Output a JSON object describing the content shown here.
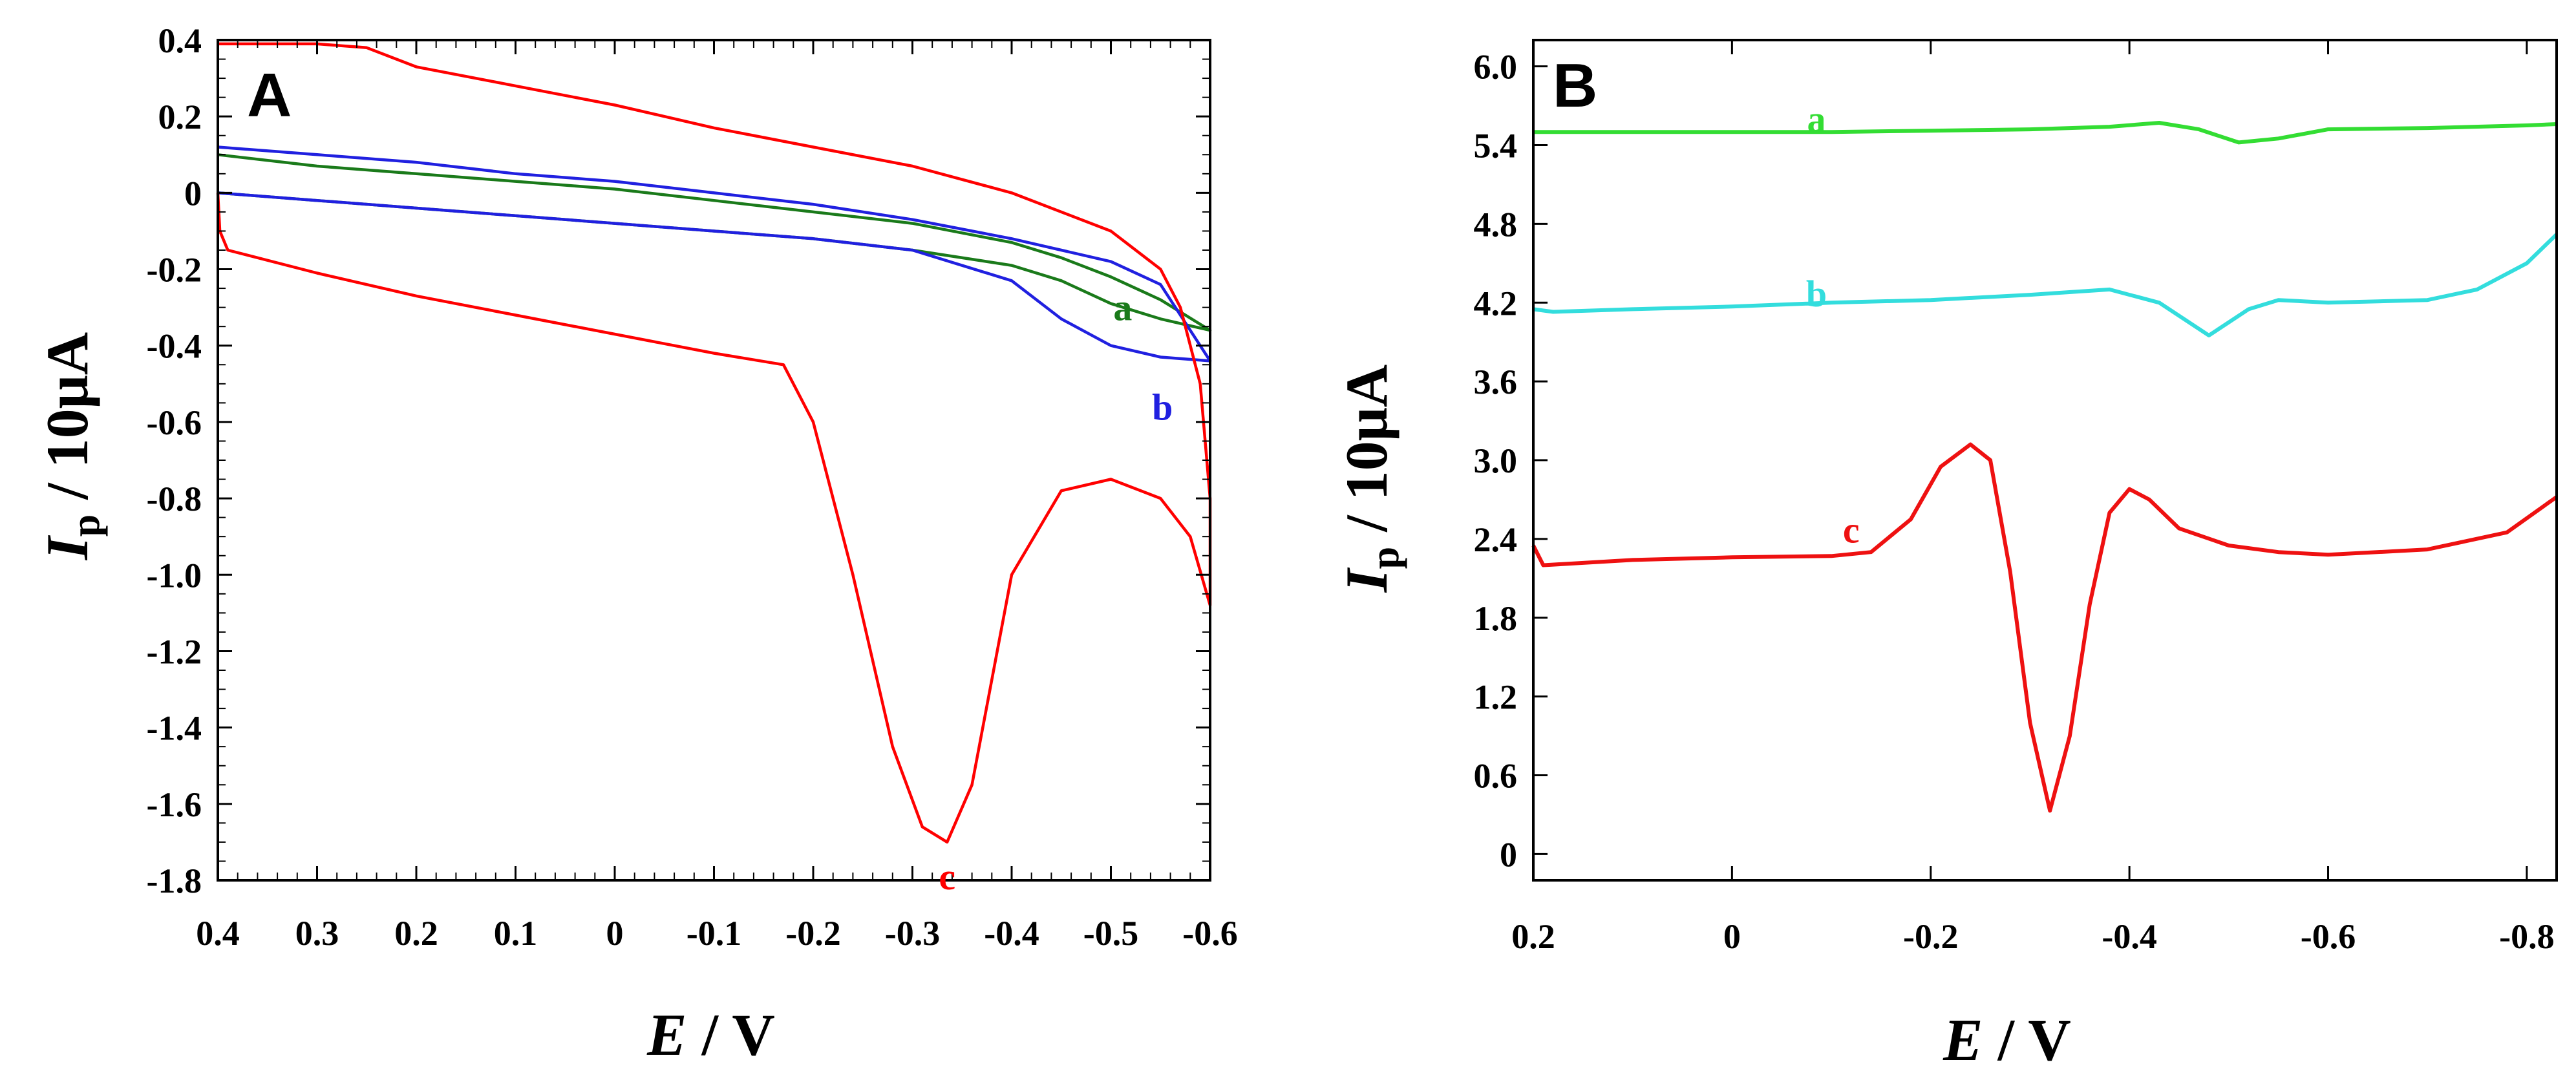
{
  "chart_data": [
    {
      "panel": "A",
      "type": "line",
      "title": "A",
      "xlabel_var": "E",
      "xlabel_unit": " / V",
      "ylabel_var": "I",
      "ylabel_sub": "p",
      "ylabel_unit": " / 10μA",
      "xlim": [
        0.4,
        -0.6
      ],
      "ylim": [
        -1.8,
        0.4
      ],
      "xticks": [
        0.4,
        0.3,
        0.2,
        0.1,
        0,
        -0.1,
        -0.2,
        -0.3,
        -0.4,
        -0.5,
        -0.6
      ],
      "xtick_labels": [
        "0.4",
        "0.3",
        "0.2",
        "0.1",
        "0",
        "-0.1",
        "-0.2",
        "-0.3",
        "-0.4",
        "-0.5",
        "-0.6"
      ],
      "yticks": [
        0.4,
        0.2,
        0,
        -0.2,
        -0.4,
        -0.6,
        -0.8,
        -1.0,
        -1.2,
        -1.4,
        -1.6,
        -1.8
      ],
      "ytick_labels": [
        "0.4",
        "0.2",
        "0",
        "-0.2",
        "-0.4",
        "-0.6",
        "-0.8",
        "-1.0",
        "-1.2",
        "-1.4",
        "-1.6",
        "-1.8"
      ],
      "series": [
        {
          "name": "a",
          "label": "a",
          "color": "#1a7a1a",
          "label_pos": [
            -0.512,
            -0.3
          ],
          "x": [
            0.4,
            0.3,
            0.2,
            0.1,
            0.0,
            -0.1,
            -0.2,
            -0.3,
            -0.4,
            -0.45,
            -0.5,
            -0.55,
            -0.6,
            -0.6,
            -0.55,
            -0.5,
            -0.45,
            -0.4,
            -0.3,
            -0.2,
            -0.1,
            0.0,
            0.1,
            0.2,
            0.3,
            0.4
          ],
          "y": [
            0.0,
            -0.02,
            -0.04,
            -0.06,
            -0.08,
            -0.1,
            -0.12,
            -0.15,
            -0.19,
            -0.23,
            -0.29,
            -0.33,
            -0.36,
            -0.36,
            -0.28,
            -0.22,
            -0.17,
            -0.13,
            -0.08,
            -0.05,
            -0.02,
            0.01,
            0.03,
            0.05,
            0.07,
            0.1
          ]
        },
        {
          "name": "b",
          "label": "b",
          "color": "#2020e0",
          "label_pos": [
            -0.552,
            -0.56
          ],
          "x": [
            0.4,
            0.3,
            0.2,
            0.1,
            0.0,
            -0.1,
            -0.2,
            -0.3,
            -0.4,
            -0.45,
            -0.5,
            -0.55,
            -0.6,
            -0.6,
            -0.55,
            -0.5,
            -0.45,
            -0.4,
            -0.3,
            -0.2,
            -0.1,
            0.0,
            0.1,
            0.2,
            0.3,
            0.4
          ],
          "y": [
            0.0,
            -0.02,
            -0.04,
            -0.06,
            -0.08,
            -0.1,
            -0.12,
            -0.15,
            -0.23,
            -0.33,
            -0.4,
            -0.43,
            -0.44,
            -0.44,
            -0.24,
            -0.18,
            -0.15,
            -0.12,
            -0.07,
            -0.03,
            0.0,
            0.03,
            0.05,
            0.08,
            0.1,
            0.12
          ]
        },
        {
          "name": "c",
          "label": "c",
          "color": "#ff0000",
          "label_pos": [
            -0.335,
            -1.79
          ],
          "x": [
            0.4,
            0.398,
            0.39,
            0.3,
            0.2,
            0.1,
            0.0,
            -0.1,
            -0.17,
            -0.2,
            -0.24,
            -0.28,
            -0.31,
            -0.335,
            -0.36,
            -0.4,
            -0.45,
            -0.5,
            -0.55,
            -0.58,
            -0.6,
            -0.6,
            -0.59,
            -0.57,
            -0.55,
            -0.5,
            -0.4,
            -0.3,
            -0.2,
            -0.1,
            0.0,
            0.1,
            0.2,
            0.25,
            0.3,
            0.4
          ],
          "y": [
            0.0,
            -0.1,
            -0.15,
            -0.21,
            -0.27,
            -0.32,
            -0.37,
            -0.42,
            -0.45,
            -0.6,
            -1.0,
            -1.45,
            -1.66,
            -1.7,
            -1.55,
            -1.0,
            -0.78,
            -0.75,
            -0.8,
            -0.9,
            -1.08,
            -0.8,
            -0.5,
            -0.3,
            -0.2,
            -0.1,
            0.0,
            0.07,
            0.12,
            0.17,
            0.23,
            0.28,
            0.33,
            0.38,
            0.39,
            0.39
          ]
        }
      ]
    },
    {
      "panel": "B",
      "type": "line",
      "title": "B",
      "xlabel_var": "E",
      "xlabel_unit": " / V",
      "ylabel_var": "I",
      "ylabel_sub": "p",
      "ylabel_unit": " / 10μA",
      "xlim": [
        0.2,
        -0.83
      ],
      "ylim": [
        -0.2,
        6.2
      ],
      "xticks": [
        0.2,
        0,
        -0.2,
        -0.4,
        -0.6,
        -0.8
      ],
      "xtick_labels": [
        "0.2",
        "0",
        "-0.2",
        "-0.4",
        "-0.6",
        "-0.8"
      ],
      "yticks": [
        6.0,
        5.4,
        4.8,
        4.2,
        3.6,
        3.0,
        2.4,
        1.8,
        1.2,
        0.6,
        0
      ],
      "ytick_labels": [
        "6.0",
        "5.4",
        "4.8",
        "4.2",
        "3.6",
        "3.0",
        "2.4",
        "1.8",
        "1.2",
        "0.6",
        "0"
      ],
      "series": [
        {
          "name": "a",
          "label": "a",
          "color": "#33dd33",
          "label_pos": [
            -0.085,
            5.6
          ],
          "x": [
            0.2,
            0.1,
            0.0,
            -0.1,
            -0.2,
            -0.3,
            -0.38,
            -0.43,
            -0.47,
            -0.51,
            -0.55,
            -0.6,
            -0.7,
            -0.8,
            -0.83
          ],
          "y": [
            5.5,
            5.5,
            5.5,
            5.5,
            5.51,
            5.52,
            5.54,
            5.57,
            5.52,
            5.42,
            5.45,
            5.52,
            5.53,
            5.55,
            5.56
          ]
        },
        {
          "name": "b",
          "label": "b",
          "color": "#33dddd",
          "label_pos": [
            -0.085,
            4.27
          ],
          "x": [
            0.2,
            0.18,
            0.1,
            0.0,
            -0.1,
            -0.2,
            -0.3,
            -0.38,
            -0.43,
            -0.48,
            -0.52,
            -0.55,
            -0.6,
            -0.7,
            -0.75,
            -0.8,
            -0.83
          ],
          "y": [
            4.15,
            4.13,
            4.15,
            4.17,
            4.2,
            4.22,
            4.26,
            4.3,
            4.2,
            3.95,
            4.15,
            4.22,
            4.2,
            4.22,
            4.3,
            4.5,
            4.72
          ]
        },
        {
          "name": "c",
          "label": "c",
          "color": "#ee1111",
          "label_pos": [
            -0.12,
            2.47
          ],
          "x": [
            0.2,
            0.19,
            0.1,
            0.0,
            -0.1,
            -0.14,
            -0.18,
            -0.21,
            -0.24,
            -0.26,
            -0.28,
            -0.3,
            -0.32,
            -0.34,
            -0.36,
            -0.38,
            -0.4,
            -0.42,
            -0.45,
            -0.5,
            -0.55,
            -0.6,
            -0.7,
            -0.78,
            -0.83
          ],
          "y": [
            2.35,
            2.2,
            2.24,
            2.26,
            2.27,
            2.3,
            2.55,
            2.95,
            3.12,
            3.0,
            2.15,
            1.0,
            0.33,
            0.9,
            1.9,
            2.6,
            2.78,
            2.7,
            2.48,
            2.35,
            2.3,
            2.28,
            2.32,
            2.45,
            2.72
          ]
        }
      ]
    }
  ]
}
